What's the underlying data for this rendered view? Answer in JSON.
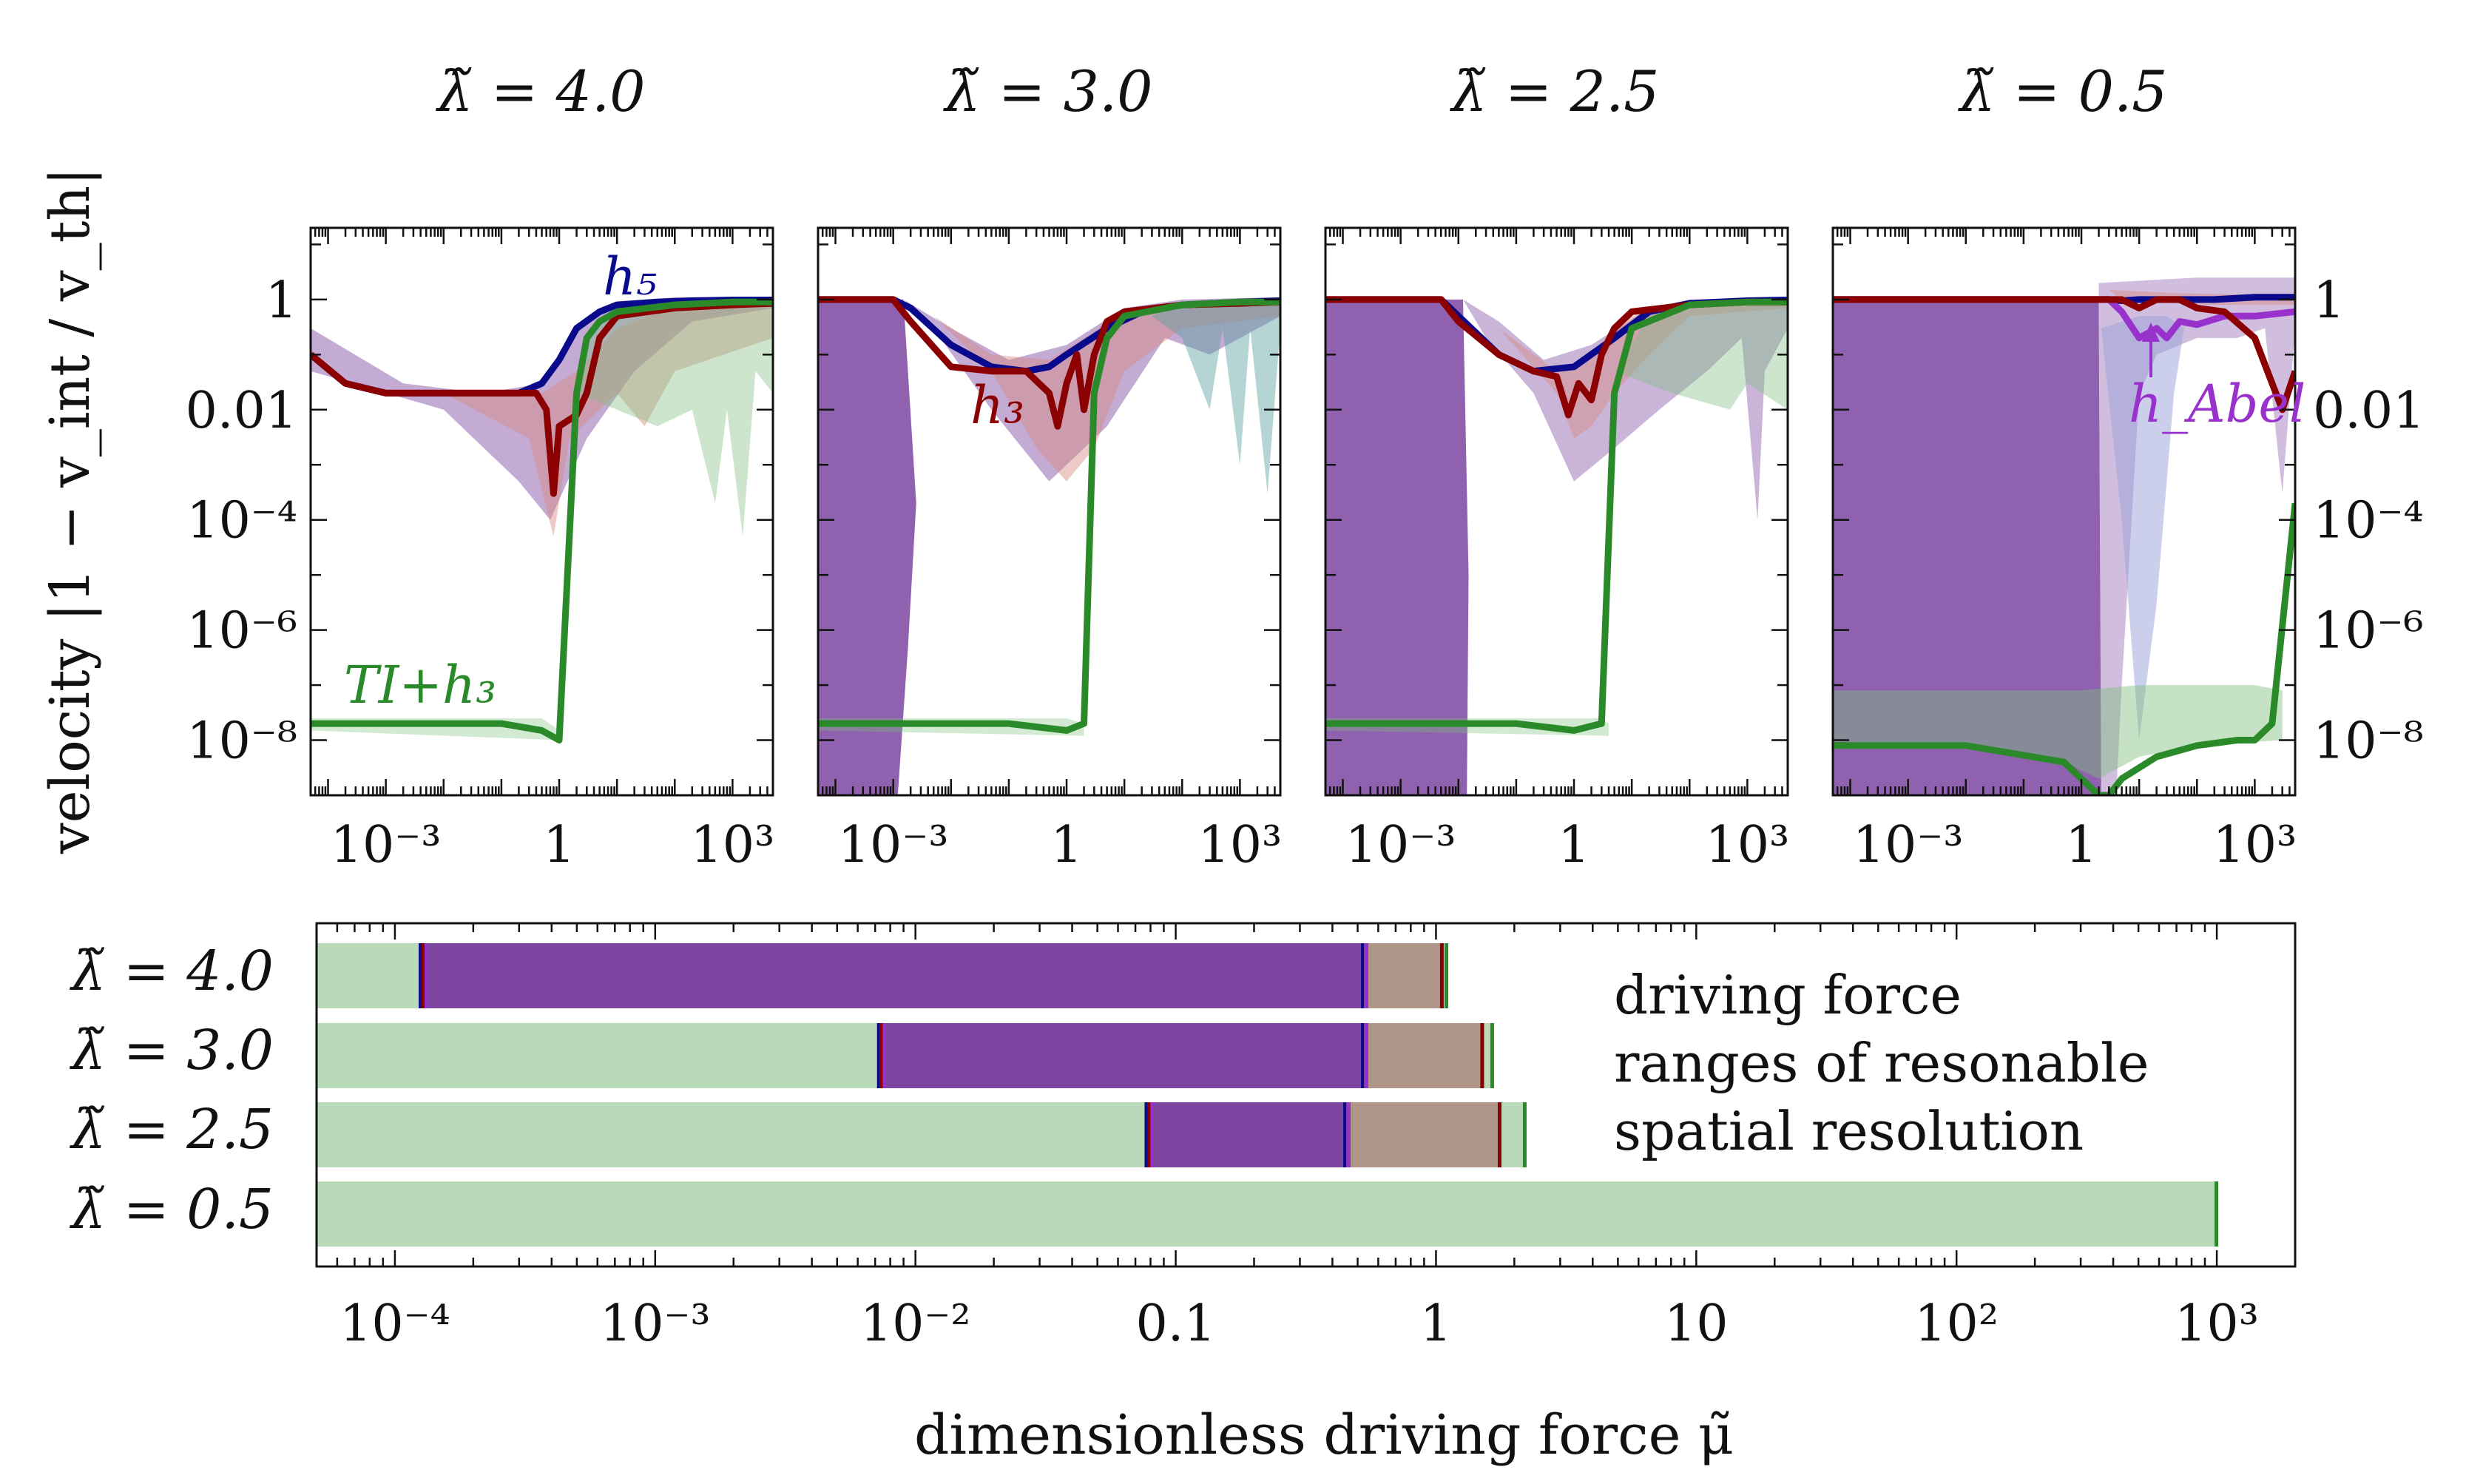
{
  "colors": {
    "h5": "#0a0a8c",
    "h3": "#8b0000",
    "ti_h3": "#2a8a2a",
    "h_abel": "#9932cc",
    "band_green": "#b9dab8",
    "band_purple": "#7b45a0",
    "band_brown": "#b09688"
  },
  "chart_data": [
    {
      "type": "line",
      "panel": "upper-1",
      "title": "λ̃ = 4.0",
      "yscale": "log",
      "ylabel": "velocity |1 − v_int / v_th|",
      "xlim": [
        5e-05,
        5000
      ],
      "ylim": [
        1e-09,
        20
      ],
      "xticks": [
        "10^-3",
        "1",
        "10^3"
      ],
      "yticks": [
        "1",
        "0.01",
        "10^-4",
        "10^-6",
        "10^-8"
      ],
      "series": [
        {
          "name": "h5",
          "x": [
            5e-05,
            0.0002,
            0.001,
            0.01,
            0.05,
            0.2,
            0.5,
            1,
            2,
            5,
            10,
            50,
            200,
            1000,
            5000
          ],
          "y": [
            0.1,
            0.03,
            0.02,
            0.02,
            0.02,
            0.02,
            0.03,
            0.08,
            0.3,
            0.6,
            0.8,
            0.9,
            0.95,
            0.98,
            0.98
          ]
        },
        {
          "name": "h3",
          "x": [
            5e-05,
            0.0002,
            0.001,
            0.01,
            0.1,
            0.4,
            0.6,
            0.8,
            1,
            2,
            3,
            5,
            10,
            100,
            1000,
            5000
          ],
          "y": [
            0.1,
            0.03,
            0.02,
            0.02,
            0.02,
            0.02,
            0.01,
            0.0003,
            0.005,
            0.008,
            0.02,
            0.2,
            0.5,
            0.7,
            0.8,
            0.85
          ]
        },
        {
          "name": "TI+h3",
          "x": [
            5e-05,
            0.01,
            0.1,
            0.5,
            1,
            2,
            3,
            5,
            10,
            100,
            1000,
            5000
          ],
          "y": [
            2e-08,
            2e-08,
            2e-08,
            1.5e-08,
            1e-08,
            0.02,
            0.2,
            0.4,
            0.6,
            0.8,
            0.9,
            0.9
          ]
        }
      ],
      "annotations": [
        "h5",
        "TI+h3"
      ]
    },
    {
      "type": "line",
      "panel": "upper-2",
      "title": "λ̃ = 3.0",
      "yscale": "log",
      "xlim": [
        5e-05,
        5000
      ],
      "ylim": [
        1e-09,
        20
      ],
      "xticks": [
        "10^-3",
        "1",
        "10^3"
      ],
      "series": [
        {
          "name": "h5",
          "x": [
            5e-05,
            0.001,
            0.002,
            0.01,
            0.05,
            0.2,
            0.5,
            1,
            5,
            20,
            100,
            1000,
            5000
          ],
          "y": [
            1,
            1,
            0.7,
            0.15,
            0.06,
            0.05,
            0.06,
            0.1,
            0.3,
            0.6,
            0.8,
            0.9,
            0.95
          ]
        },
        {
          "name": "h3",
          "x": [
            5e-05,
            0.001,
            0.002,
            0.01,
            0.05,
            0.2,
            0.5,
            0.7,
            1,
            1.5,
            2,
            3,
            5,
            10,
            100,
            1000,
            5000
          ],
          "y": [
            1,
            1,
            0.4,
            0.06,
            0.05,
            0.05,
            0.02,
            0.005,
            0.03,
            0.1,
            0.01,
            0.1,
            0.4,
            0.6,
            0.8,
            0.85,
            0.9
          ]
        },
        {
          "name": "TI+h3",
          "x": [
            5e-05,
            0.01,
            0.1,
            1,
            2,
            3,
            5,
            10,
            100,
            1000,
            5000
          ],
          "y": [
            2e-08,
            2e-08,
            2e-08,
            1.5e-08,
            2e-08,
            0.02,
            0.2,
            0.5,
            0.8,
            0.9,
            0.9
          ]
        }
      ],
      "annotations": [
        "h3"
      ]
    },
    {
      "type": "line",
      "panel": "upper-3",
      "title": "λ̃ = 2.5",
      "yscale": "log",
      "xlim": [
        5e-05,
        5000
      ],
      "ylim": [
        1e-09,
        20
      ],
      "xticks": [
        "10^-3",
        "1",
        "10^3"
      ],
      "series": [
        {
          "name": "h5",
          "x": [
            5e-05,
            0.005,
            0.01,
            0.05,
            0.2,
            1,
            5,
            20,
            100,
            1000,
            5000
          ],
          "y": [
            1,
            1,
            0.5,
            0.1,
            0.05,
            0.06,
            0.2,
            0.6,
            0.85,
            0.95,
            0.98
          ]
        },
        {
          "name": "h3",
          "x": [
            5e-05,
            0.005,
            0.01,
            0.05,
            0.2,
            0.5,
            0.8,
            1.2,
            2,
            3,
            5,
            10,
            100,
            1000,
            5000
          ],
          "y": [
            1,
            1,
            0.4,
            0.1,
            0.05,
            0.04,
            0.008,
            0.03,
            0.015,
            0.1,
            0.3,
            0.6,
            0.8,
            0.9,
            0.9
          ]
        },
        {
          "name": "TI+h3",
          "x": [
            5e-05,
            0.01,
            0.1,
            1,
            3,
            5,
            10,
            100,
            1000,
            5000
          ],
          "y": [
            2e-08,
            2e-08,
            2e-08,
            1.5e-08,
            2e-08,
            0.02,
            0.3,
            0.8,
            0.9,
            0.9
          ]
        }
      ]
    },
    {
      "type": "line",
      "panel": "upper-4",
      "title": "λ̃ = 0.5",
      "yscale": "log",
      "xlim": [
        5e-05,
        5000
      ],
      "ylim": [
        1e-09,
        20
      ],
      "xticks": [
        "10^-3",
        "1",
        "10^3"
      ],
      "y2ticks": [
        "1",
        "0.01",
        "10^-4",
        "10^-6",
        "10^-8"
      ],
      "series": [
        {
          "name": "h5",
          "x": [
            5e-05,
            1,
            3,
            5,
            10,
            50,
            200,
            1000,
            5000
          ],
          "y": [
            1,
            1,
            1,
            0.95,
            1,
            1,
            1,
            1.1,
            1.1
          ]
        },
        {
          "name": "h_Abel",
          "x": [
            5e-05,
            3,
            5,
            10,
            20,
            30,
            50,
            100,
            300,
            1000,
            5000
          ],
          "y": [
            1,
            1,
            0.6,
            0.2,
            0.3,
            0.2,
            0.4,
            0.35,
            0.5,
            0.5,
            0.6
          ]
        },
        {
          "name": "h3",
          "x": [
            5e-05,
            5,
            10,
            20,
            50,
            100,
            300,
            1000,
            2000,
            3000,
            5000
          ],
          "y": [
            1,
            1,
            0.7,
            1,
            1,
            0.7,
            0.6,
            0.2,
            0.03,
            0.01,
            0.05
          ]
        },
        {
          "name": "TI+h3",
          "x": [
            5e-05,
            0.01,
            0.5,
            1,
            2,
            2.5,
            3,
            5,
            20,
            100,
            500,
            1000,
            2000,
            5000
          ],
          "y": [
            8e-09,
            8e-09,
            4e-09,
            2e-09,
            7e-10,
            7e-10,
            7e-10,
            2e-09,
            5e-09,
            8e-09,
            1e-08,
            1e-08,
            2e-08,
            0.0002
          ]
        }
      ],
      "annotations": [
        "h_Abel"
      ]
    },
    {
      "type": "range-bar",
      "panel": "lower",
      "xscale": "log",
      "xlim": [
        5e-05,
        2000
      ],
      "xlabel": "dimensionless driving force μ̃",
      "xticks": [
        "10^-4",
        "10^-3",
        "10^-2",
        "0.1",
        "1",
        "10",
        "10^2",
        "10^3"
      ],
      "categories": [
        "λ̃ = 4.0",
        "λ̃ = 3.0",
        "λ̃ = 2.5",
        "λ̃ = 0.5"
      ],
      "ranges": [
        {
          "green": [
            5e-05,
            1.1
          ],
          "purple": [
            0.00013,
            0.55
          ],
          "brown": [
            0.55,
            1.05
          ]
        },
        {
          "green": [
            5e-05,
            1.65
          ],
          "purple": [
            0.0075,
            0.55
          ],
          "brown": [
            0.55,
            1.5
          ]
        },
        {
          "green": [
            5e-05,
            2.2
          ],
          "purple": [
            0.08,
            0.47
          ],
          "brown": [
            0.47,
            1.75
          ]
        },
        {
          "green": [
            5e-05,
            1000
          ],
          "purple": null,
          "brown": null
        }
      ],
      "legend": [
        "driving force",
        "ranges of resonable",
        "spatial resolution"
      ]
    }
  ],
  "labels": {
    "titles": [
      "λ̃ = 4.0",
      "λ̃ = 3.0",
      "λ̃ = 2.5",
      "λ̃ = 0.5"
    ],
    "ylabel": "velocity  |1 − v_int / v_th|",
    "xlabel": "dimensionless driving force μ̃",
    "ann_h5": "h₅",
    "ann_h3": "h₃",
    "ann_ti": "TI+h₃",
    "ann_abel": "h_Abel",
    "upper_xticks": [
      "10⁻³",
      "1",
      "10³"
    ],
    "upper_yticks": [
      "1",
      "0.01",
      "10⁻⁴",
      "10⁻⁶",
      "10⁻⁸"
    ],
    "lower_xticks": [
      "10⁻⁴",
      "10⁻³",
      "10⁻²",
      "0.1",
      "1",
      "10",
      "10²",
      "10³"
    ],
    "row_labels": [
      "λ̃ = 4.0",
      "λ̃ = 3.0",
      "λ̃ = 2.5",
      "λ̃ = 0.5"
    ],
    "legend": [
      "driving force",
      "ranges of resonable",
      "spatial resolution"
    ]
  }
}
